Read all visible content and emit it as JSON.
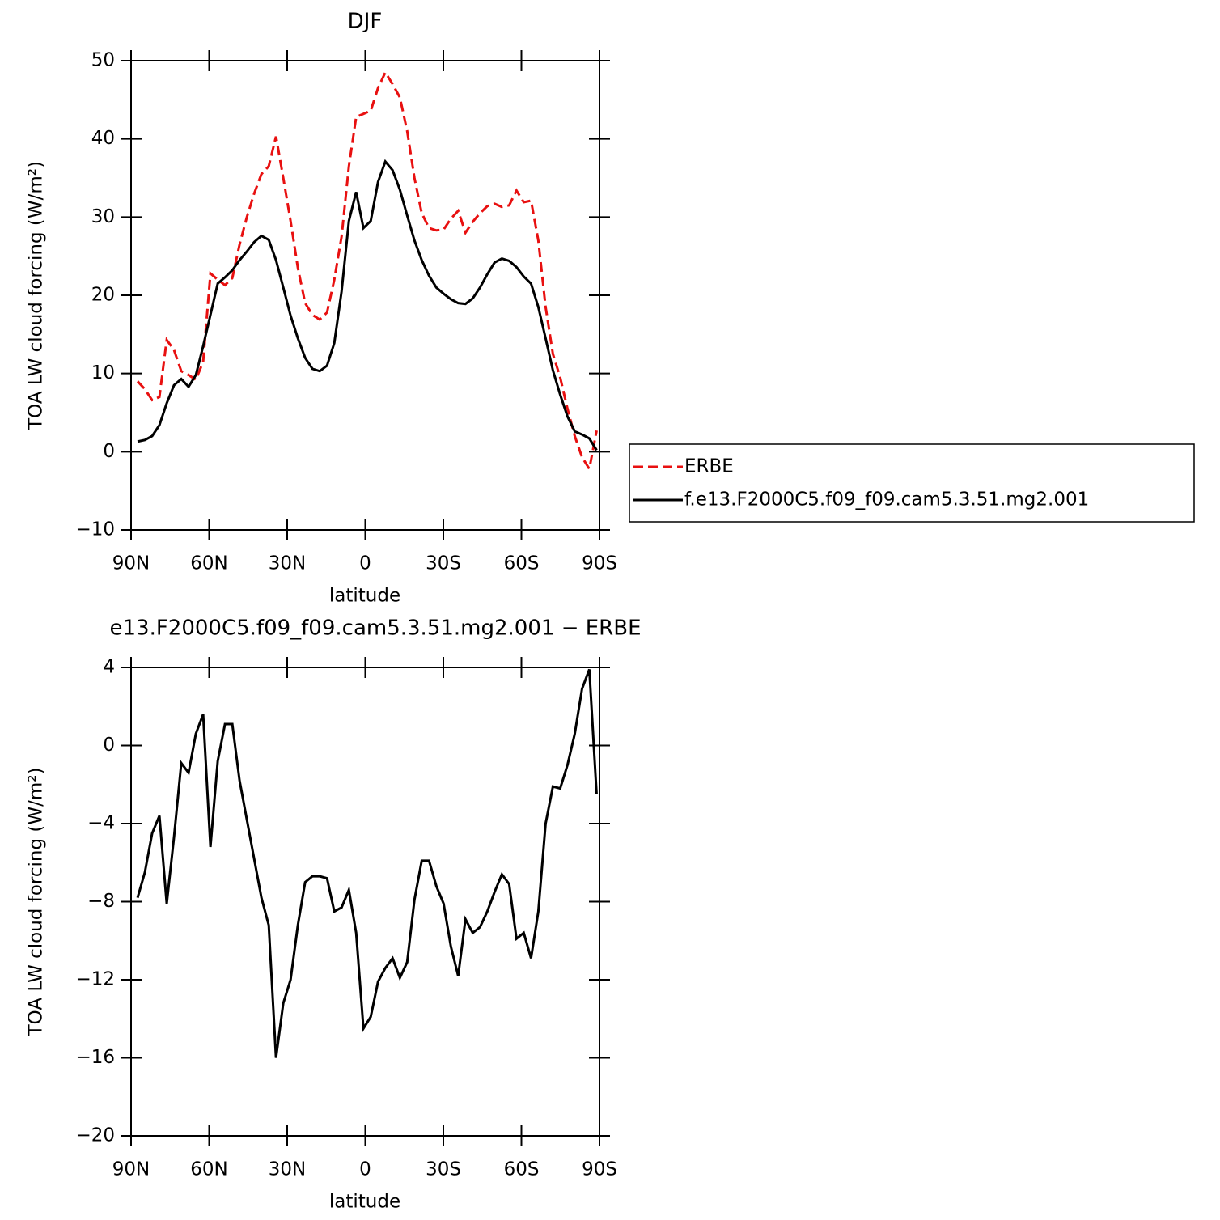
{
  "chart_data": [
    {
      "type": "line",
      "title": "DJF",
      "xlabel": "latitude",
      "ylabel": "TOA LW cloud forcing (W/m²)",
      "xlim": [
        90,
        -90
      ],
      "xticks": [
        {
          "value": 90,
          "label": "90N"
        },
        {
          "value": 60,
          "label": "60N"
        },
        {
          "value": 30,
          "label": "30N"
        },
        0,
        {
          "value": -30,
          "label": "30S"
        },
        {
          "value": -60,
          "label": "60S"
        },
        {
          "value": -90,
          "label": "90S"
        }
      ],
      "ylim": [
        -10,
        50
      ],
      "yticks": [
        {
          "value": -10,
          "label": "−10"
        },
        0,
        10,
        20,
        30,
        40,
        50
      ],
      "legend": "right",
      "x": [
        87.5,
        84.7,
        81.9,
        79.1,
        76.3,
        73.5,
        70.7,
        67.9,
        65.1,
        62.3,
        59.5,
        56.7,
        53.9,
        51.1,
        48.3,
        45.5,
        42.7,
        39.9,
        37.1,
        34.3,
        31.5,
        28.7,
        25.9,
        23.1,
        20.3,
        17.5,
        14.7,
        11.9,
        9.1,
        6.3,
        3.5,
        0.7,
        -2.1,
        -4.9,
        -7.7,
        -10.5,
        -13.3,
        -16.1,
        -18.9,
        -21.7,
        -24.5,
        -27.3,
        -30.1,
        -32.9,
        -35.7,
        -38.5,
        -41.3,
        -44.1,
        -46.9,
        -49.7,
        -52.5,
        -55.3,
        -58.1,
        -60.9,
        -63.7,
        -66.5,
        -69.3,
        -72.1,
        -74.9,
        -77.7,
        -80.5,
        -83.3,
        -86.1,
        -88.9
      ],
      "series": [
        {
          "name": "ERBE",
          "color": "#e81010",
          "linestyle": "dashed",
          "values": [
            9,
            8,
            6.6,
            7,
            14.3,
            13,
            10.3,
            9.8,
            9.2,
            11.5,
            22.8,
            22,
            21.3,
            22.2,
            26.5,
            30,
            33,
            35.5,
            36.5,
            40.3,
            35,
            29.5,
            23.5,
            19,
            17.5,
            16.9,
            17.8,
            22,
            27.5,
            36.5,
            42.8,
            43.2,
            43.6,
            46.5,
            48.5,
            47,
            45.3,
            41,
            35,
            30.5,
            28.6,
            28.3,
            28.4,
            29.8,
            30.8,
            28,
            29.4,
            30.5,
            31.4,
            31.7,
            31.3,
            31.5,
            33.4,
            31.9,
            32.1,
            27,
            18.5,
            12.5,
            9.5,
            5.5,
            2,
            -0.7,
            -2.2,
            2.7
          ]
        },
        {
          "name": "f.e13.F2000C5.f09_f09.cam5.3.51.mg2.001",
          "color": "#000000",
          "linestyle": "solid",
          "values": [
            1.3,
            1.5,
            2,
            3.4,
            6.2,
            8.5,
            9.3,
            8.3,
            9.8,
            13.5,
            17.5,
            21.5,
            22.3,
            23.2,
            24.5,
            25.6,
            26.8,
            27.6,
            27.1,
            24.5,
            21,
            17.4,
            14.5,
            12,
            10.6,
            10.3,
            11,
            13.9,
            20.5,
            29.5,
            33.2,
            28.6,
            29.5,
            34.5,
            37.1,
            36,
            33.5,
            30.2,
            27,
            24.5,
            22.5,
            21,
            20.2,
            19.5,
            19,
            18.9,
            19.6,
            21,
            22.7,
            24.2,
            24.7,
            24.4,
            23.6,
            22.4,
            21.5,
            18.5,
            14.5,
            10.4,
            7.3,
            4.5,
            2.6,
            2.2,
            1.7,
            0.2
          ]
        }
      ]
    },
    {
      "type": "line",
      "title": "e13.F2000C5.f09_f09.cam5.3.51.mg2.001 − ERBE",
      "xlabel": "latitude",
      "ylabel": "TOA LW cloud forcing (W/m²)",
      "xlim": [
        90,
        -90
      ],
      "xticks": [
        {
          "value": 90,
          "label": "90N"
        },
        {
          "value": 60,
          "label": "60N"
        },
        {
          "value": 30,
          "label": "30N"
        },
        0,
        {
          "value": -30,
          "label": "30S"
        },
        {
          "value": -60,
          "label": "60S"
        },
        {
          "value": -90,
          "label": "90S"
        }
      ],
      "ylim": [
        -20,
        4
      ],
      "yticks": [
        {
          "value": -20,
          "label": "−20"
        },
        {
          "value": -16,
          "label": "−16"
        },
        {
          "value": -12,
          "label": "−12"
        },
        {
          "value": -8,
          "label": "−8"
        },
        {
          "value": -4,
          "label": "−4"
        },
        0,
        4
      ],
      "x": [
        87.5,
        84.7,
        81.9,
        79.1,
        76.3,
        73.5,
        70.7,
        67.9,
        65.1,
        62.3,
        59.5,
        56.7,
        53.9,
        51.1,
        48.3,
        45.5,
        42.7,
        39.9,
        37.1,
        34.3,
        31.5,
        28.7,
        25.9,
        23.1,
        20.3,
        17.5,
        14.7,
        11.9,
        9.1,
        6.3,
        3.5,
        0.7,
        -2.1,
        -4.9,
        -7.7,
        -10.5,
        -13.3,
        -16.1,
        -18.9,
        -21.7,
        -24.5,
        -27.3,
        -30.1,
        -32.9,
        -35.7,
        -38.5,
        -41.3,
        -44.1,
        -46.9,
        -49.7,
        -52.5,
        -55.3,
        -58.1,
        -60.9,
        -63.7,
        -66.5,
        -69.3,
        -72.1,
        -74.9,
        -77.7,
        -80.5,
        -83.3,
        -86.1,
        -88.9
      ],
      "series": [
        {
          "color": "#000000",
          "linestyle": "solid",
          "values": [
            -7.8,
            -6.5,
            -4.5,
            -3.6,
            -8.1,
            -4.7,
            -0.9,
            -1.4,
            0.6,
            1.6,
            -5.2,
            -0.8,
            1.1,
            1.1,
            -1.8,
            -3.8,
            -5.8,
            -7.8,
            -9.2,
            -16,
            -13.2,
            -12,
            -9.2,
            -7,
            -6.7,
            -6.7,
            -6.8,
            -8.5,
            -8.3,
            -7.4,
            -9.6,
            -14.5,
            -13.9,
            -12.1,
            -11.4,
            -10.9,
            -11.9,
            -11.1,
            -7.9,
            -5.9,
            -5.9,
            -7.2,
            -8.1,
            -10.3,
            -11.8,
            -8.9,
            -9.6,
            -9.3,
            -8.5,
            -7.5,
            -6.6,
            -7.1,
            -9.9,
            -9.6,
            -10.9,
            -8.5,
            -4,
            -2.1,
            -2.2,
            -1,
            0.6,
            2.9,
            3.9,
            -2.5
          ]
        }
      ]
    }
  ]
}
